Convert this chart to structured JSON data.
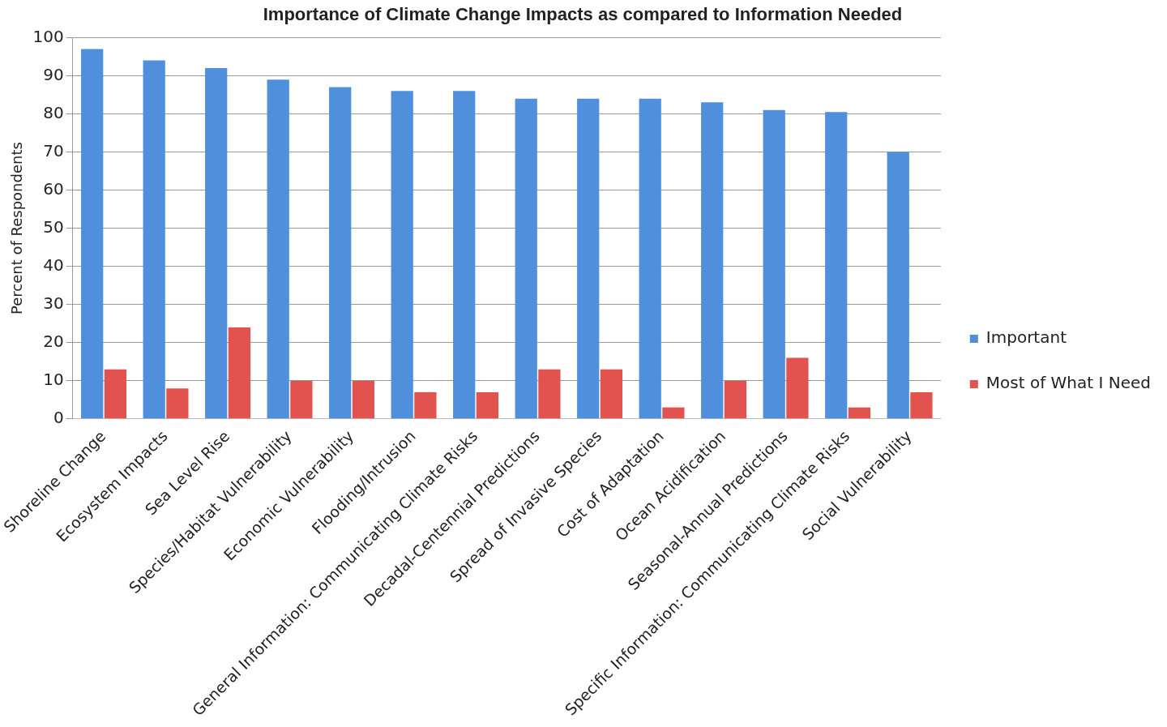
{
  "chart_data": {
    "type": "bar",
    "title": "Importance of Climate Change Impacts as compared to Information Needed",
    "ylabel": "Percent of Respondents",
    "categories": [
      "Shoreline Change",
      "Ecosystem Impacts",
      "Sea Level Rise",
      "Species/Habitat Vulnerability",
      "Economic Vulnerability",
      "Flooding/Intrusion",
      "General Information: Communicating Climate Risks",
      "Decadal-Centennial Predictions",
      "Spread of Invasive Species",
      "Cost of Adaptation",
      "Ocean Acidification",
      "Seasonal-Annual Predictions",
      "Specific Information: Communicating Climate Risks",
      "Social Vulnerability"
    ],
    "series": [
      {
        "name": "Important",
        "color": "#4f8fdc",
        "values": [
          97,
          94,
          92,
          89,
          87,
          86,
          86,
          84,
          84,
          84,
          83,
          81,
          80.5,
          70
        ]
      },
      {
        "name": "Most of What I Need",
        "color": "#e2524f",
        "values": [
          13,
          8,
          24,
          10,
          10,
          7,
          7,
          13,
          13,
          3,
          10,
          16,
          3,
          7
        ]
      }
    ],
    "ylim": [
      0,
      100
    ],
    "yticks": [
      0,
      10,
      20,
      30,
      40,
      50,
      60,
      70,
      80,
      90,
      100
    ],
    "grid": "y",
    "legend": "right"
  }
}
